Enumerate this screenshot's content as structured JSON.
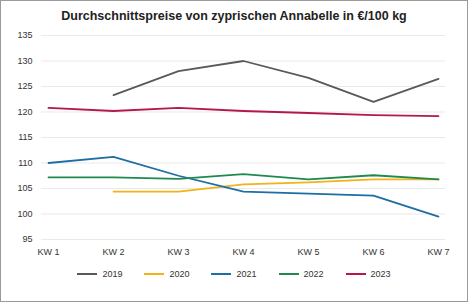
{
  "chart_data": {
    "type": "line",
    "title": "Durchschnittspreise von zyprischen Annabelle in €/100 kg",
    "categories": [
      "KW 1",
      "KW 2",
      "KW 3",
      "KW 4",
      "KW 5",
      "KW 6",
      "KW 7"
    ],
    "series": [
      {
        "name": "2019",
        "color": "#595959",
        "values": [
          null,
          123.3,
          128,
          130,
          126.7,
          122,
          126.5
        ]
      },
      {
        "name": "2020",
        "color": "#f2b21b",
        "values": [
          null,
          104.4,
          104.4,
          105.8,
          106.2,
          106.8,
          106.8
        ]
      },
      {
        "name": "2021",
        "color": "#1c6ea4",
        "values": [
          110,
          111.2,
          107.5,
          104.4,
          104,
          103.6,
          99.5
        ]
      },
      {
        "name": "2022",
        "color": "#1f8a4c",
        "values": [
          107.2,
          107.2,
          106.9,
          107.8,
          106.8,
          107.6,
          106.8
        ]
      },
      {
        "name": "2023",
        "color": "#b5174e",
        "values": [
          120.8,
          120.2,
          120.8,
          120.2,
          119.8,
          119.4,
          119.2
        ]
      }
    ],
    "ylim": [
      95,
      135
    ],
    "yticks": [
      95,
      100,
      105,
      110,
      115,
      120,
      125,
      130,
      135
    ],
    "grid": true,
    "legend": "bottom"
  }
}
